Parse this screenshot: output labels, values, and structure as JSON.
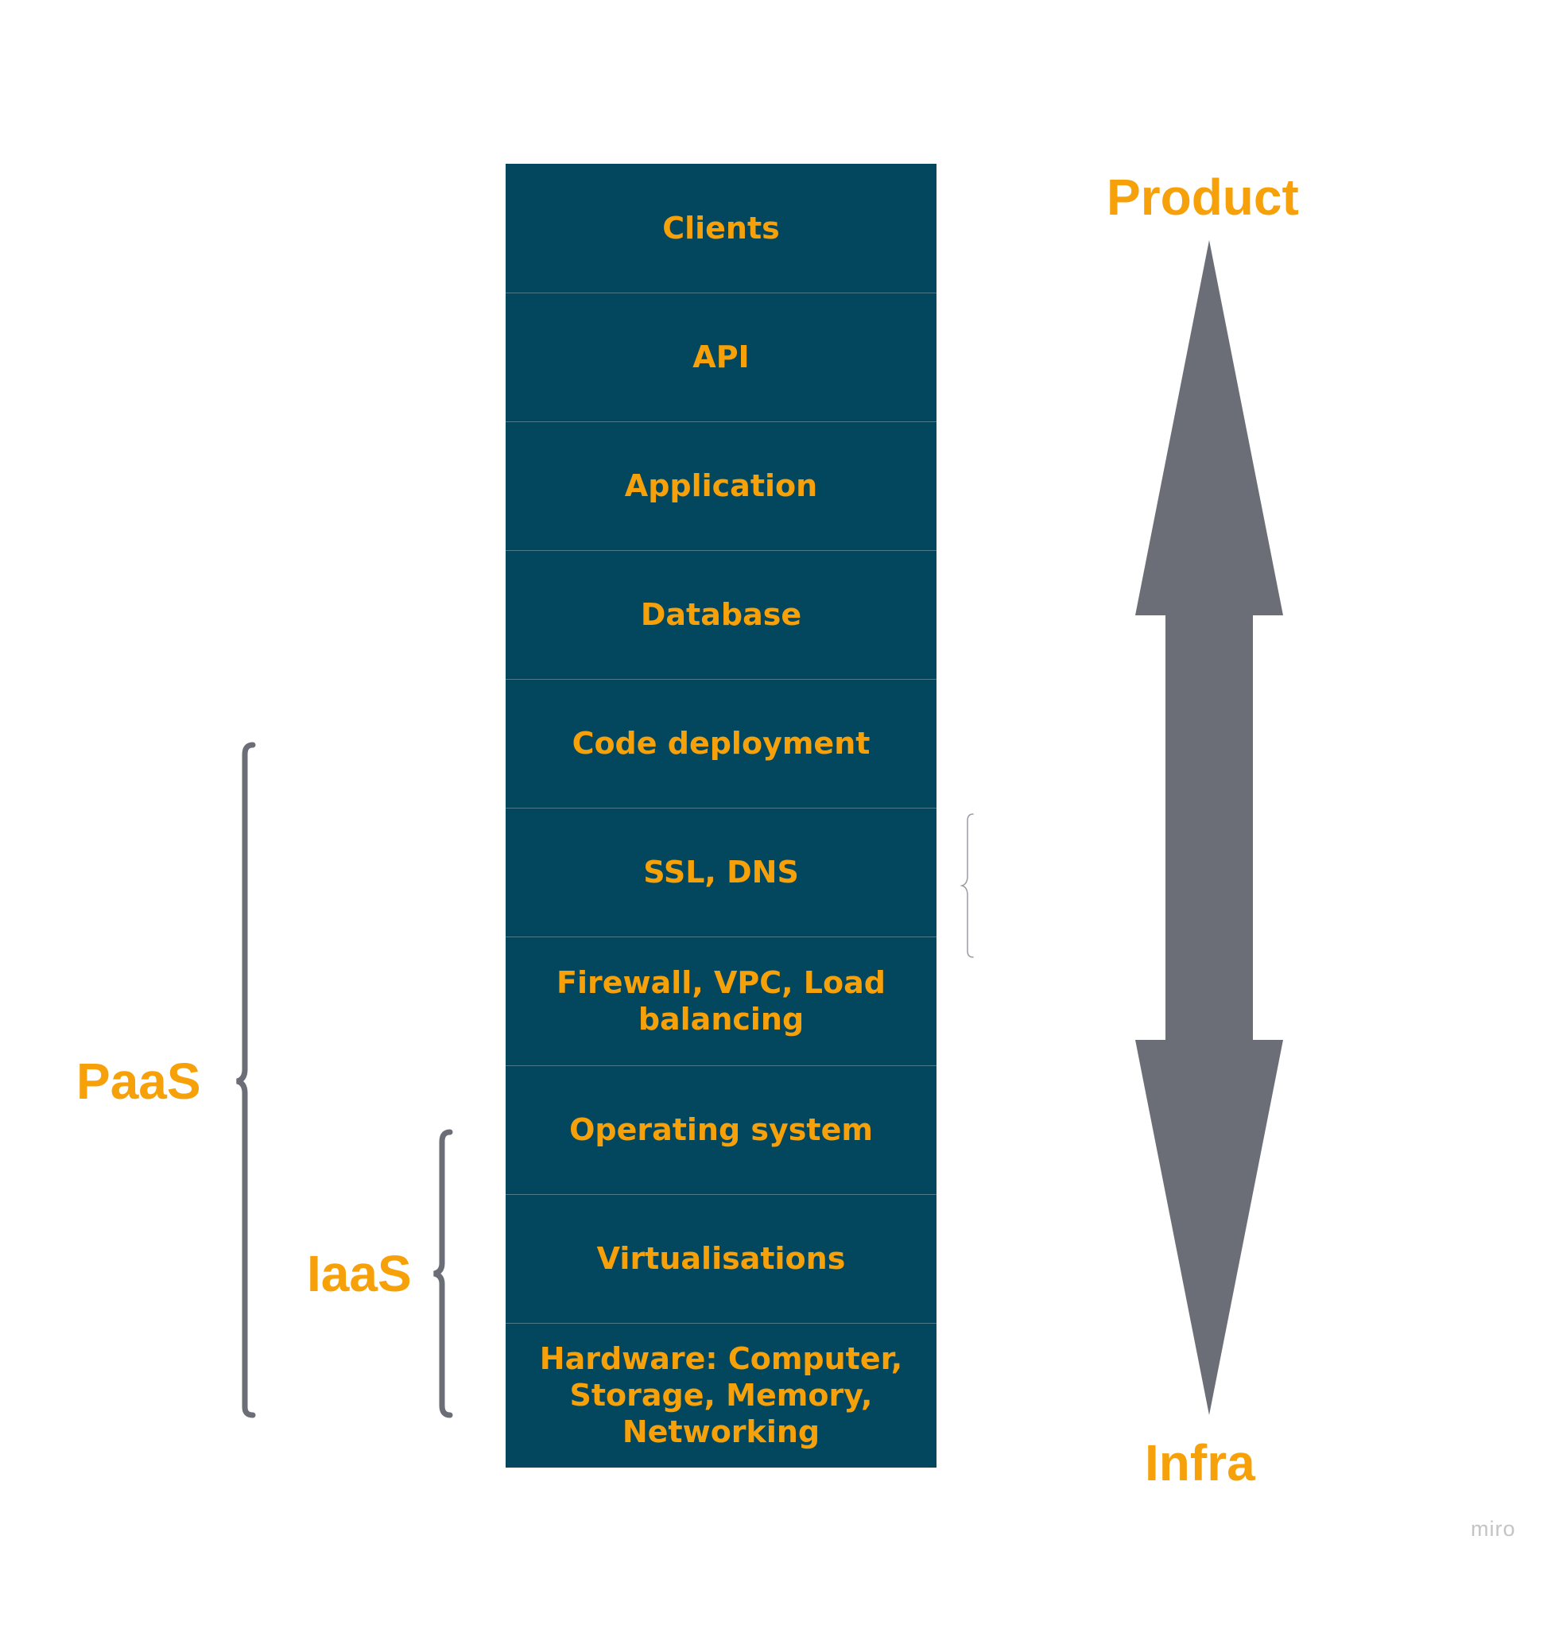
{
  "layers": [
    {
      "label": "Clients"
    },
    {
      "label": "API"
    },
    {
      "label": "Application"
    },
    {
      "label": "Database"
    },
    {
      "label": "Code deployment"
    },
    {
      "label": "SSL, DNS"
    },
    {
      "label": "Firewall, VPC, Load\nbalancing"
    },
    {
      "label": "Operating system"
    },
    {
      "label": "Virtualisations"
    },
    {
      "label": "Hardware: Computer,\nStorage, Memory,\nNetworking"
    }
  ],
  "axis": {
    "top_label": "Product",
    "bottom_label": "Infra"
  },
  "brackets": {
    "paas_label": "PaaS",
    "iaas_label": "IaaS"
  },
  "watermark": "miro",
  "colors": {
    "stack_bg": "#03475e",
    "label": "#f7a10a",
    "arrow": "#6b6e76",
    "bracket": "#6b6e76"
  }
}
